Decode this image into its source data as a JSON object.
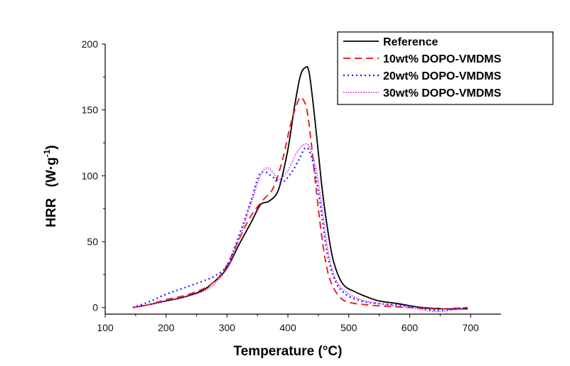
{
  "chart_data": {
    "type": "line",
    "title": "",
    "xlabel": "Temperature (°C)",
    "ylabel": "HRR",
    "ylabel_unit": "(W·g",
    "ylabel_sup": "-1",
    "ylabel_close": ")",
    "xlim": [
      100,
      750
    ],
    "ylim": [
      -5,
      200
    ],
    "xticks": [
      100,
      200,
      300,
      400,
      500,
      600,
      700
    ],
    "yticks": [
      0,
      50,
      100,
      150,
      200
    ],
    "grid": false,
    "legend_position": "top-right",
    "series": [
      {
        "name": "Reference",
        "color": "#000000",
        "style": "solid",
        "points": [
          [
            145,
            0
          ],
          [
            170,
            2
          ],
          [
            200,
            5
          ],
          [
            230,
            8
          ],
          [
            260,
            13
          ],
          [
            280,
            20
          ],
          [
            300,
            30
          ],
          [
            320,
            48
          ],
          [
            340,
            65
          ],
          [
            355,
            78
          ],
          [
            370,
            81
          ],
          [
            385,
            90
          ],
          [
            400,
            120
          ],
          [
            410,
            150
          ],
          [
            420,
            175
          ],
          [
            428,
            182
          ],
          [
            435,
            178
          ],
          [
            445,
            140
          ],
          [
            455,
            95
          ],
          [
            465,
            60
          ],
          [
            475,
            35
          ],
          [
            490,
            18
          ],
          [
            510,
            12
          ],
          [
            530,
            8
          ],
          [
            550,
            5
          ],
          [
            580,
            3
          ],
          [
            620,
            0
          ],
          [
            660,
            -1
          ],
          [
            695,
            -1
          ]
        ]
      },
      {
        "name": "10wt% DOPO-VMDMS",
        "color": "#e8262a",
        "style": "dashed",
        "points": [
          [
            145,
            0
          ],
          [
            170,
            2
          ],
          [
            200,
            6
          ],
          [
            230,
            9
          ],
          [
            260,
            14
          ],
          [
            280,
            20
          ],
          [
            300,
            32
          ],
          [
            320,
            52
          ],
          [
            340,
            70
          ],
          [
            360,
            82
          ],
          [
            375,
            90
          ],
          [
            390,
            110
          ],
          [
            405,
            140
          ],
          [
            418,
            158
          ],
          [
            425,
            158
          ],
          [
            432,
            148
          ],
          [
            440,
            118
          ],
          [
            450,
            75
          ],
          [
            460,
            40
          ],
          [
            470,
            20
          ],
          [
            485,
            8
          ],
          [
            500,
            4
          ],
          [
            530,
            2
          ],
          [
            560,
            1
          ],
          [
            600,
            0
          ],
          [
            650,
            -1
          ],
          [
            695,
            0
          ]
        ]
      },
      {
        "name": "20wt% DOPO-VMDMS",
        "color": "#1a1aff",
        "style": "dotted",
        "points": [
          [
            145,
            0
          ],
          [
            170,
            4
          ],
          [
            200,
            10
          ],
          [
            230,
            15
          ],
          [
            260,
            20
          ],
          [
            280,
            24
          ],
          [
            300,
            32
          ],
          [
            320,
            55
          ],
          [
            340,
            82
          ],
          [
            352,
            100
          ],
          [
            362,
            103
          ],
          [
            375,
            99
          ],
          [
            390,
            95
          ],
          [
            405,
            102
          ],
          [
            418,
            112
          ],
          [
            428,
            121
          ],
          [
            436,
            118
          ],
          [
            445,
            102
          ],
          [
            455,
            72
          ],
          [
            465,
            40
          ],
          [
            478,
            20
          ],
          [
            495,
            10
          ],
          [
            520,
            5
          ],
          [
            550,
            3
          ],
          [
            600,
            1
          ],
          [
            640,
            -2
          ],
          [
            670,
            -1
          ],
          [
            695,
            0
          ]
        ]
      },
      {
        "name": "30wt% DOPO-VMDMS",
        "color": "#e324e3",
        "style": "dotted-fine",
        "points": [
          [
            145,
            0
          ],
          [
            170,
            2
          ],
          [
            200,
            5
          ],
          [
            230,
            8
          ],
          [
            260,
            12
          ],
          [
            280,
            18
          ],
          [
            300,
            30
          ],
          [
            320,
            52
          ],
          [
            340,
            80
          ],
          [
            355,
            100
          ],
          [
            365,
            106
          ],
          [
            375,
            103
          ],
          [
            385,
            97
          ],
          [
            400,
            104
          ],
          [
            415,
            118
          ],
          [
            428,
            124
          ],
          [
            435,
            122
          ],
          [
            445,
            108
          ],
          [
            455,
            80
          ],
          [
            465,
            45
          ],
          [
            478,
            22
          ],
          [
            495,
            12
          ],
          [
            520,
            6
          ],
          [
            550,
            3
          ],
          [
            600,
            0
          ],
          [
            640,
            -3
          ],
          [
            670,
            -2
          ],
          [
            695,
            0
          ]
        ]
      }
    ]
  }
}
